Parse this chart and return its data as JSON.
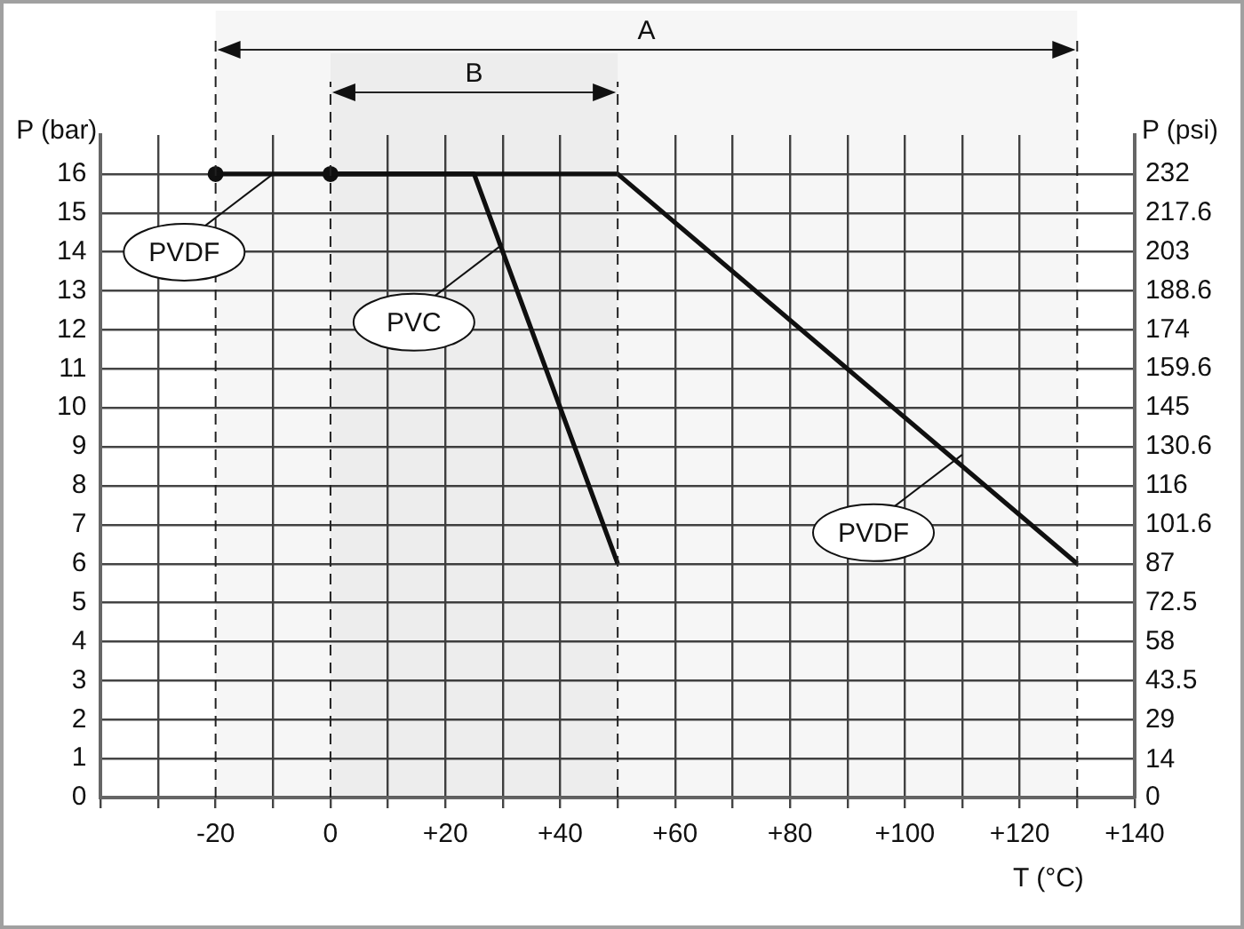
{
  "chart_data": {
    "type": "line",
    "xlabel": "T (°C)",
    "ylabel": "P (bar)",
    "y2label": "P (psi)",
    "xlim": [
      -40,
      140
    ],
    "xticks": [
      {
        "value": -40,
        "label": null
      },
      {
        "value": -30,
        "label": null
      },
      -20,
      {
        "value": -10,
        "label": null
      },
      0,
      {
        "value": 10,
        "label": null
      },
      {
        "value": 20,
        "label": "+20"
      },
      {
        "value": 30,
        "label": null
      },
      {
        "value": 40,
        "label": "+40"
      },
      {
        "value": 50,
        "label": null
      },
      {
        "value": 60,
        "label": "+60"
      },
      {
        "value": 70,
        "label": null
      },
      {
        "value": 80,
        "label": "+80"
      },
      {
        "value": 90,
        "label": null
      },
      {
        "value": 100,
        "label": "+100"
      },
      {
        "value": 110,
        "label": null
      },
      {
        "value": 120,
        "label": "+120"
      },
      {
        "value": 130,
        "label": null
      },
      {
        "value": 140,
        "label": "+140"
      }
    ],
    "ylim": [
      0,
      17
    ],
    "yticks": [
      0,
      1,
      2,
      3,
      4,
      5,
      6,
      7,
      8,
      9,
      10,
      11,
      12,
      13,
      14,
      15,
      16
    ],
    "y2lim": [
      0,
      246.5
    ],
    "y2ticks": [
      0,
      14,
      29,
      43.5,
      58,
      72.5,
      87,
      101.6,
      116,
      130.6,
      145,
      159.6,
      174,
      188.6,
      203,
      217.6,
      232
    ],
    "series": [
      {
        "color": "#111111",
        "x": [
          -20,
          50,
          130
        ],
        "values": [
          16,
          16,
          6
        ],
        "marker": "none"
      },
      {
        "color": "#111111",
        "x": [
          0,
          25,
          50
        ],
        "values": [
          16,
          16,
          6
        ],
        "marker": "none"
      },
      {
        "type": "scatter",
        "color": "#111111",
        "x": [
          -20,
          0
        ],
        "values": [
          16,
          16
        ],
        "marker": "circle"
      }
    ],
    "bands": [
      {
        "axis": "x",
        "from": -20,
        "to": 130,
        "label": "A"
      },
      {
        "axis": "x",
        "from": 0,
        "to": 50,
        "label": "B"
      }
    ],
    "annotations": [
      {
        "text": "PVDF",
        "x": -10,
        "y": 16
      },
      {
        "text": "PVC",
        "x": 30,
        "y": 14.2
      },
      {
        "text": "PVDF",
        "x": 110,
        "y": 8.8
      }
    ],
    "grid": true,
    "legend": false
  }
}
